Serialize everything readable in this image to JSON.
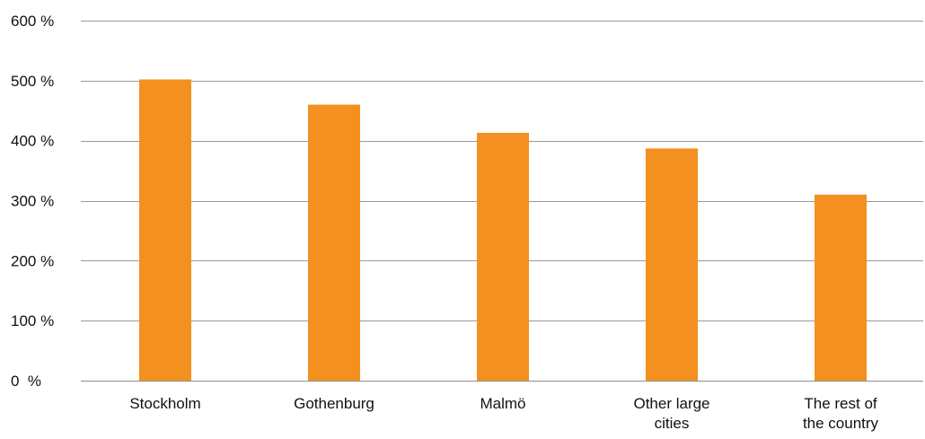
{
  "chart_data": {
    "type": "bar",
    "categories": [
      [
        "Stockholm"
      ],
      [
        "Gothenburg"
      ],
      [
        "Malmö"
      ],
      [
        "Other large",
        "cities"
      ],
      [
        "The rest of",
        "the country"
      ]
    ],
    "values": [
      502,
      460,
      413,
      387,
      310
    ],
    "unit": "%",
    "ylim": [
      0,
      600
    ],
    "yticks": [
      {
        "value": 0,
        "label": "0  %"
      },
      {
        "value": 100,
        "label": "100 %"
      },
      {
        "value": 200,
        "label": "200 %"
      },
      {
        "value": 300,
        "label": "300 %"
      },
      {
        "value": 400,
        "label": "400 %"
      },
      {
        "value": 500,
        "label": "500 %"
      },
      {
        "value": 600,
        "label": "600 %"
      }
    ],
    "grid": true,
    "legend": "none",
    "title": "",
    "xlabel": "",
    "ylabel": "",
    "colors": {
      "bar": "#f39020",
      "grid": "#9a9a9a"
    }
  }
}
